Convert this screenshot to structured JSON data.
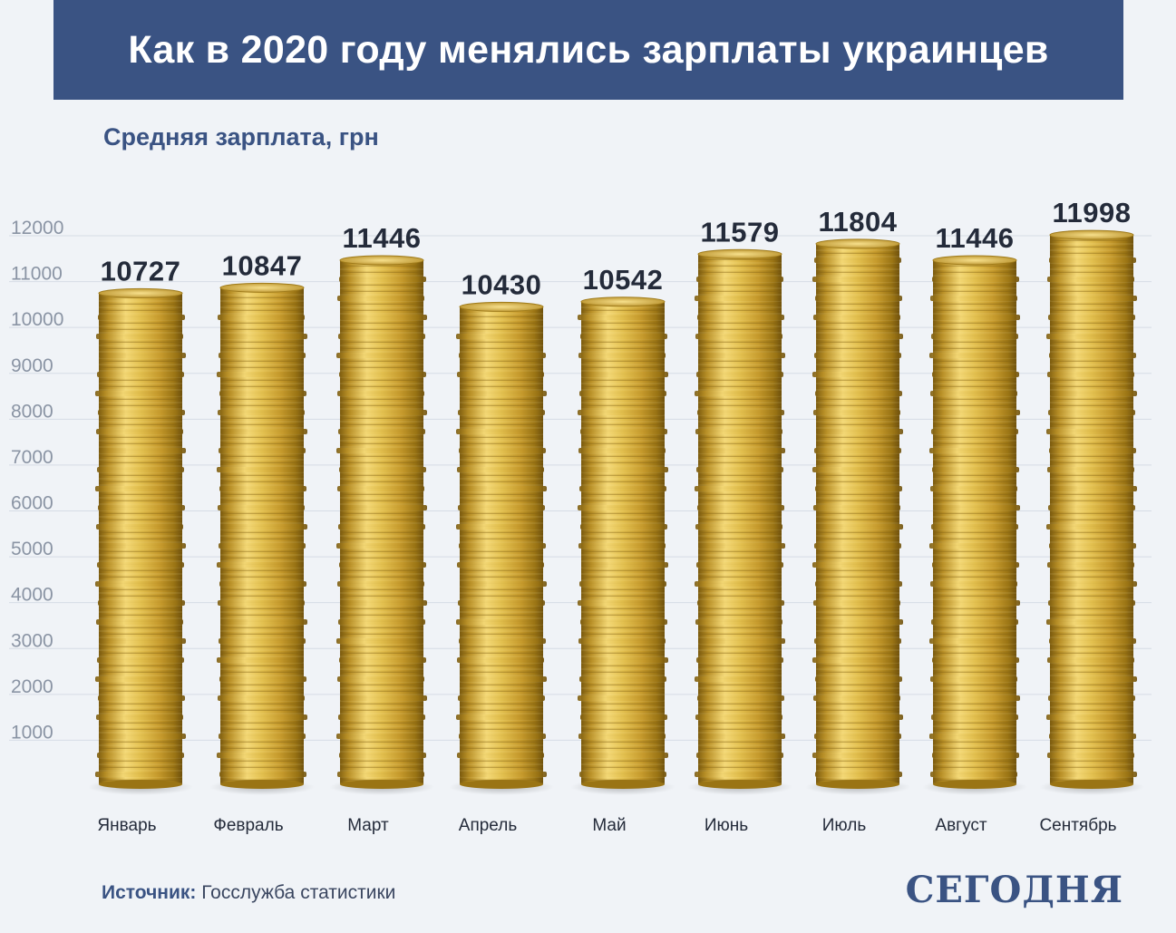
{
  "header": {
    "title": "Как в 2020 году менялись зарплаты украинцев"
  },
  "subtitle": "Средняя зарплата, грн",
  "source": {
    "label": "Источник:",
    "text": "Госслужба статистики"
  },
  "logo": {
    "text": "СЕГОДНЯ"
  },
  "colors": {
    "header_bg": "#3a5383",
    "background": "#f0f3f7",
    "coin_gold": "#d9b43c",
    "coin_dark": "#9a7414",
    "label_text": "#242b3a",
    "tick_text": "#8a94a4",
    "grid": "#d6dce6"
  },
  "chart_data": {
    "type": "bar",
    "categories": [
      "Январь",
      "Февраль",
      "Март",
      "Апрель",
      "Май",
      "Июнь",
      "Июль",
      "Август",
      "Сентябрь"
    ],
    "values": [
      10727,
      10847,
      11446,
      10430,
      10542,
      11579,
      11804,
      11446,
      11998
    ],
    "value_labels": [
      "10727",
      "10847",
      "11446",
      "10430",
      "10542",
      "11579",
      "11804",
      "11446",
      "11998"
    ],
    "ylim": [
      0,
      12000
    ],
    "yticks": [
      1000,
      2000,
      3000,
      4000,
      5000,
      6000,
      7000,
      8000,
      9000,
      10000,
      11000,
      12000
    ],
    "grid": true,
    "bar_style": "stacked gold coins"
  }
}
